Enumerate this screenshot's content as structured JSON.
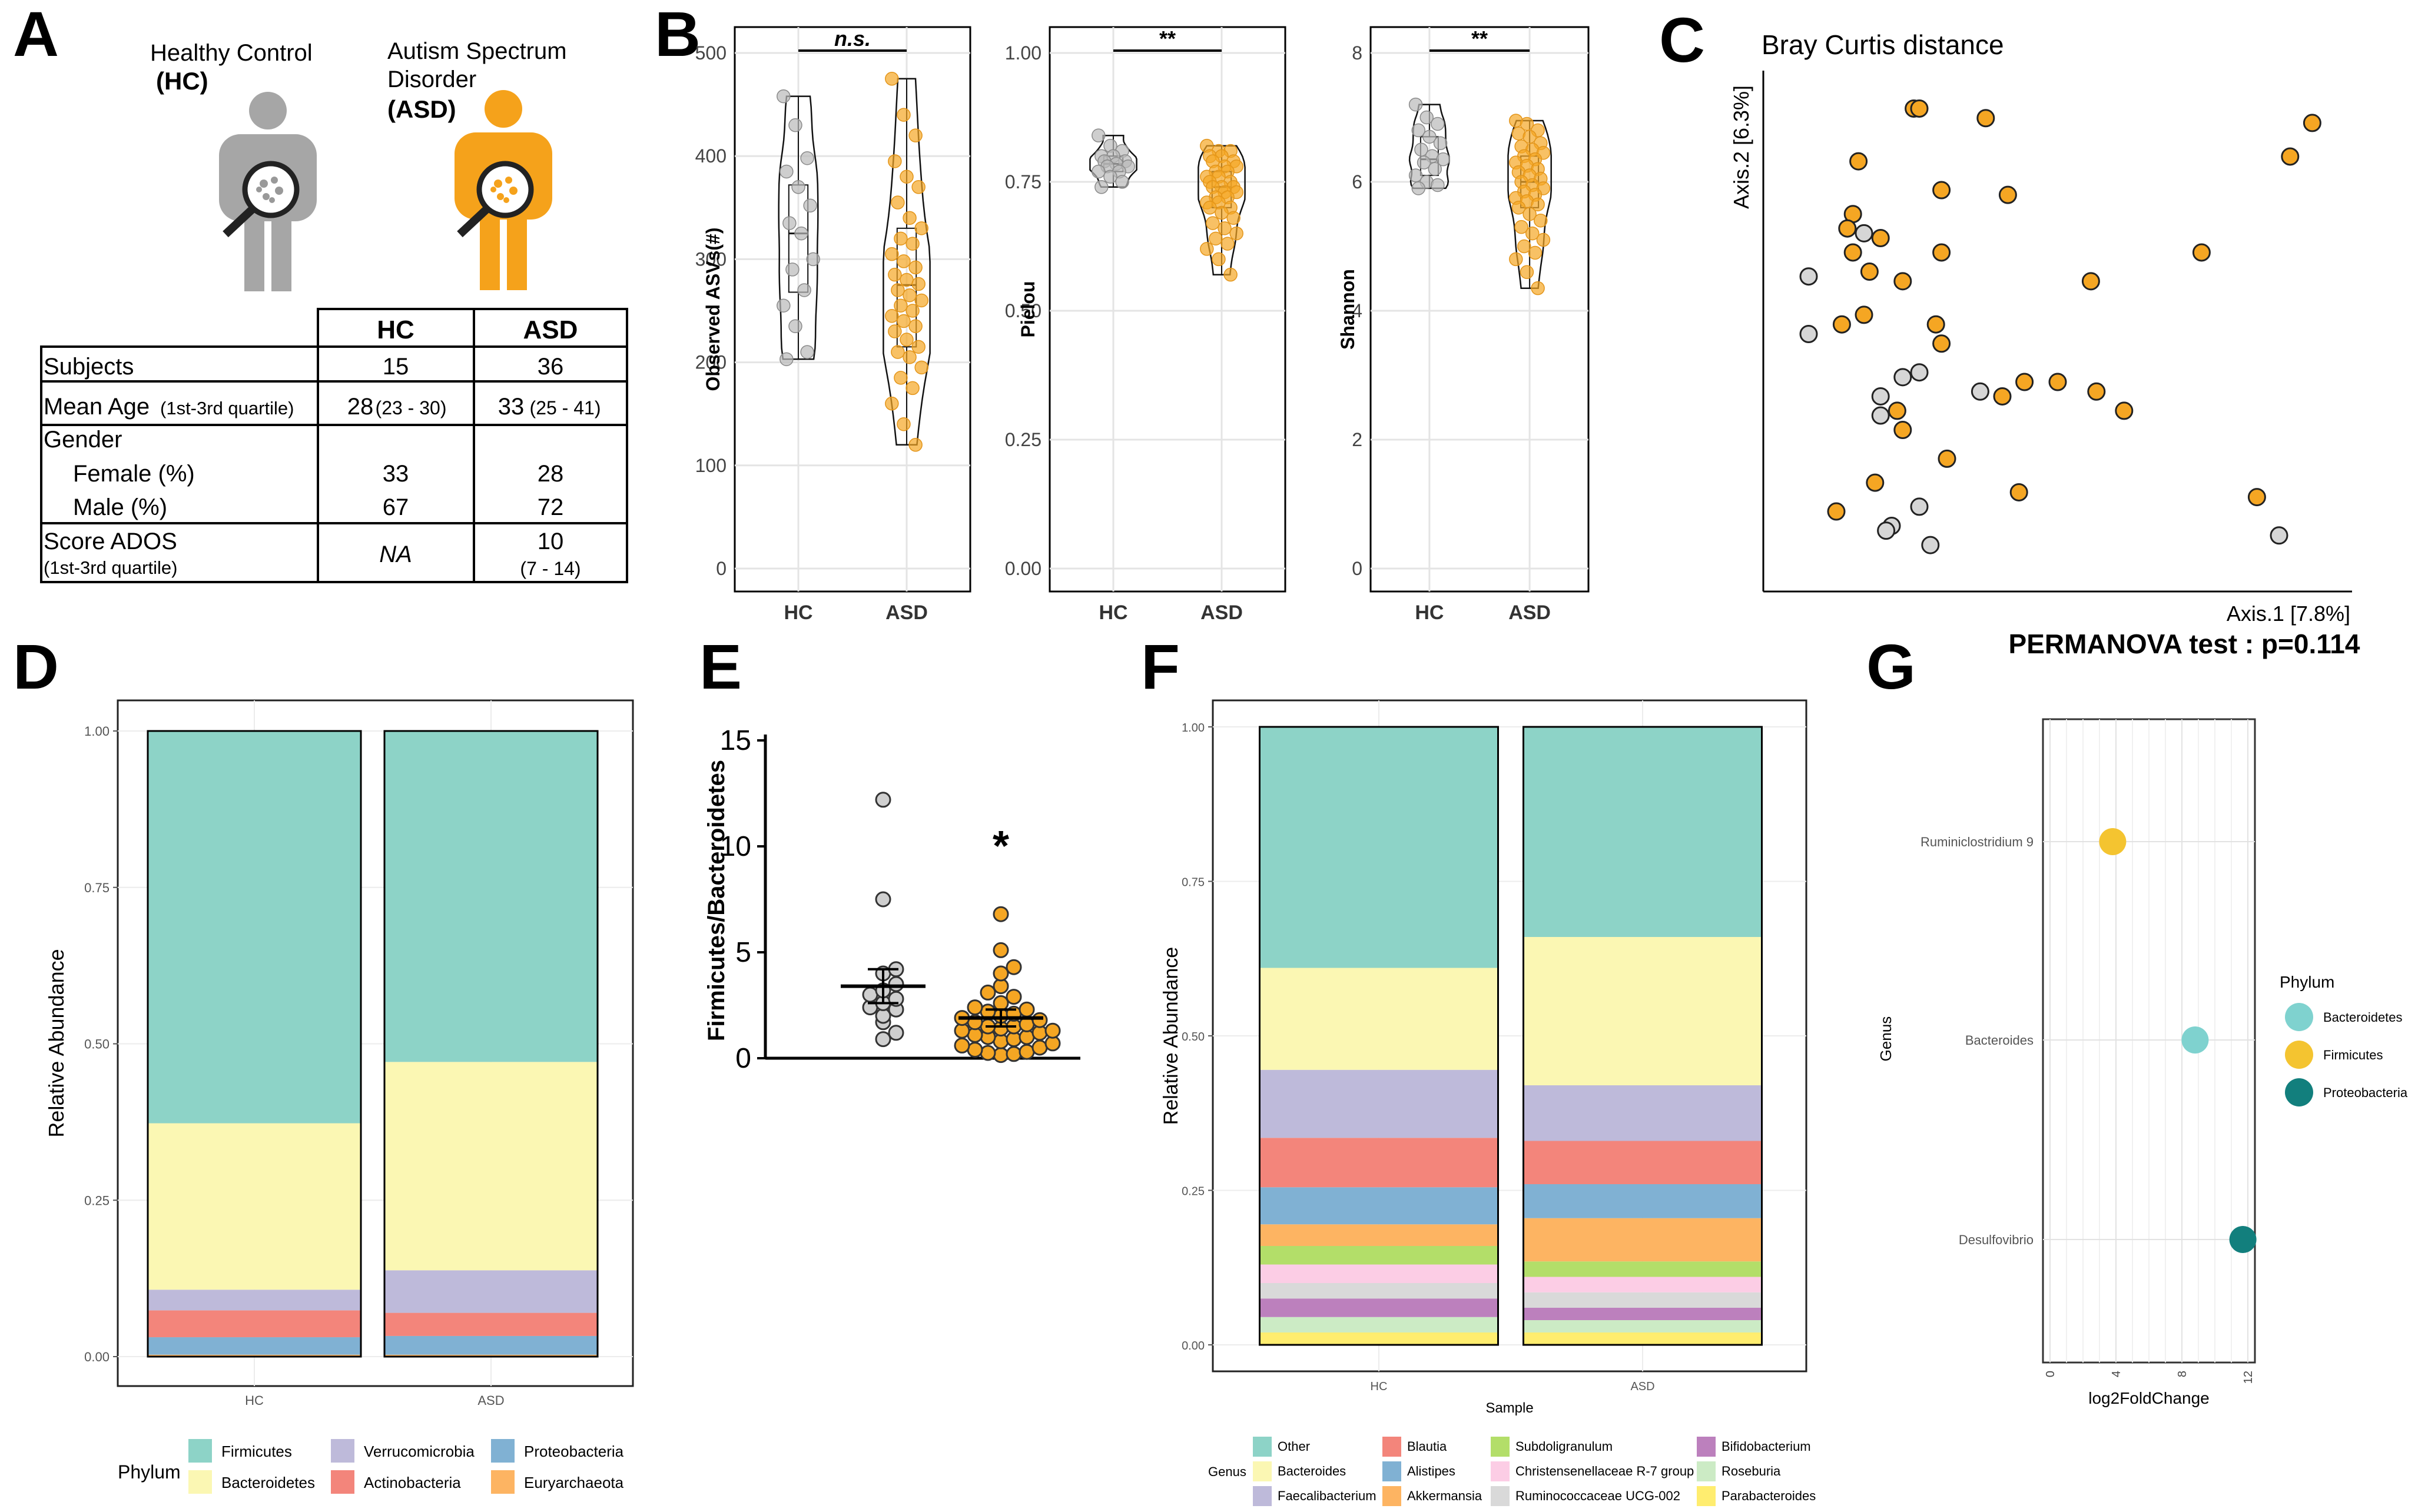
{
  "colors": {
    "hc": "#b9b9b9",
    "asd": "#f5a623",
    "grid": "#e4e4e4",
    "firmicutes": "#8dd3c7",
    "bacteroidetes": "#fbf7b3",
    "verrucomicrobia": "#bebada",
    "actinobacteria": "#f3857b",
    "proteobacteria": "#80b1d3",
    "euryarchaeota": "#fdb462",
    "g_bacteroidetes": "#7fd2cf",
    "g_firmicutes": "#f4c430",
    "g_proteobacteria": "#127f7d"
  },
  "panels": {
    "A": "A",
    "B": "B",
    "C": "C",
    "D": "D",
    "E": "E",
    "F": "F",
    "G": "G"
  },
  "panel_a": {
    "hc_line1": "Healthy Control",
    "hc_line2": "(HC)",
    "asd_line1": "Autism Spectrum",
    "asd_line2": "Disorder",
    "asd_line3": "(ASD)",
    "table": {
      "col_hc": "HC",
      "col_asd": "ASD",
      "subjects_label": "Subjects",
      "subjects_hc": "15",
      "subjects_asd": "36",
      "age_label": "Mean Age",
      "age_sub": "(1st-3rd quartile)",
      "age_hc": "28",
      "age_hc_range": "(23 - 30)",
      "age_asd": "33",
      "age_asd_range": "(25 - 41)",
      "gender_label": "Gender",
      "female_label": "Female (%)",
      "female_hc": "33",
      "female_asd": "28",
      "male_label": "Male (%)",
      "male_hc": "67",
      "male_asd": "72",
      "ados_label": "Score ADOS",
      "ados_sub": "(1st-3rd quartile)",
      "ados_hc": "NA",
      "ados_asd": "10",
      "ados_asd_range": "(7 - 14)"
    }
  },
  "chart_data": [
    {
      "id": "B1",
      "type": "violin",
      "title": "",
      "ylabel": "Observed ASVs(#)",
      "xlabel": "",
      "categories": [
        "HC",
        "ASD"
      ],
      "ylim": [
        0,
        500
      ],
      "yticks": [
        "0",
        "100",
        "200",
        "300",
        "400",
        "500"
      ],
      "significance": "n.s.",
      "box": {
        "HC": [
          268,
          325,
          372
        ],
        "ASD": [
          215,
          275,
          330
        ]
      },
      "points": {
        "HC": [
          458,
          430,
          398,
          385,
          370,
          352,
          335,
          325,
          300,
          290,
          270,
          255,
          235,
          210,
          203
        ],
        "ASD": [
          475,
          440,
          420,
          395,
          380,
          370,
          355,
          340,
          330,
          320,
          315,
          305,
          298,
          292,
          285,
          280,
          276,
          270,
          265,
          260,
          255,
          250,
          245,
          240,
          235,
          230,
          222,
          215,
          210,
          205,
          195,
          185,
          175,
          160,
          140,
          120
        ]
      }
    },
    {
      "id": "B2",
      "type": "violin",
      "title": "",
      "ylabel": "Pielou",
      "xlabel": "",
      "categories": [
        "HC",
        "ASD"
      ],
      "ylim": [
        0,
        1
      ],
      "yticks": [
        "0.00",
        "0.25",
        "0.50",
        "0.75",
        "1.00"
      ],
      "significance": "**",
      "box": {
        "HC": [
          0.77,
          0.785,
          0.8
        ],
        "ASD": [
          0.7,
          0.74,
          0.77
        ]
      },
      "points": {
        "HC": [
          0.84,
          0.82,
          0.81,
          0.8,
          0.8,
          0.79,
          0.79,
          0.785,
          0.78,
          0.78,
          0.77,
          0.77,
          0.76,
          0.75,
          0.74
        ],
        "ASD": [
          0.82,
          0.81,
          0.81,
          0.8,
          0.8,
          0.79,
          0.79,
          0.78,
          0.78,
          0.77,
          0.77,
          0.76,
          0.76,
          0.75,
          0.75,
          0.74,
          0.74,
          0.74,
          0.73,
          0.73,
          0.72,
          0.72,
          0.71,
          0.71,
          0.7,
          0.7,
          0.69,
          0.68,
          0.67,
          0.66,
          0.65,
          0.64,
          0.63,
          0.62,
          0.6,
          0.57
        ]
      }
    },
    {
      "id": "B3",
      "type": "violin",
      "title": "",
      "ylabel": "Shannon",
      "xlabel": "",
      "categories": [
        "HC",
        "ASD"
      ],
      "ylim": [
        0,
        8
      ],
      "yticks": [
        "0",
        "2",
        "4",
        "6",
        "8"
      ],
      "significance": "**",
      "box": {
        "HC": [
          6.1,
          6.35,
          6.7
        ],
        "ASD": [
          5.6,
          6.0,
          6.4
        ]
      },
      "points": {
        "HC": [
          7.2,
          7.0,
          6.9,
          6.8,
          6.7,
          6.6,
          6.5,
          6.4,
          6.35,
          6.3,
          6.2,
          6.1,
          6.0,
          5.95,
          5.9
        ],
        "ASD": [
          6.95,
          6.9,
          6.8,
          6.75,
          6.7,
          6.6,
          6.55,
          6.5,
          6.45,
          6.4,
          6.35,
          6.3,
          6.25,
          6.2,
          6.15,
          6.1,
          6.05,
          6.0,
          5.95,
          5.9,
          5.85,
          5.8,
          5.75,
          5.7,
          5.65,
          5.6,
          5.5,
          5.4,
          5.3,
          5.2,
          5.1,
          5.0,
          4.9,
          4.8,
          4.6,
          4.35
        ]
      }
    },
    {
      "id": "C",
      "type": "scatter",
      "title": "Bray Curtis distance",
      "xlabel": "Axis.1   [7.8%]",
      "ylabel": "Axis.2   [6.3%]",
      "note": "PERMANOVA test : p=0.114",
      "xlim": [
        0,
        100
      ],
      "ylim": [
        0,
        100
      ],
      "series": [
        {
          "name": "HC",
          "points": [
            [
              5,
              62
            ],
            [
              5,
              50
            ],
            [
              15,
              71
            ],
            [
              25,
              42
            ],
            [
              18,
              37
            ],
            [
              22,
              41
            ],
            [
              36,
              38
            ],
            [
              18,
              33
            ],
            [
              20,
              10
            ],
            [
              19,
              9
            ],
            [
              25,
              14
            ],
            [
              27,
              6
            ],
            [
              90,
              8
            ]
          ]
        },
        {
          "name": "ASD",
          "points": [
            [
              24,
              97
            ],
            [
              25,
              97
            ],
            [
              37,
              95
            ],
            [
              96,
              94
            ],
            [
              92,
              87
            ],
            [
              14,
              86
            ],
            [
              29,
              80
            ],
            [
              41,
              79
            ],
            [
              13,
              75
            ],
            [
              12,
              72
            ],
            [
              18,
              70
            ],
            [
              13,
              67
            ],
            [
              29,
              67
            ],
            [
              76,
              67
            ],
            [
              16,
              63
            ],
            [
              22,
              61
            ],
            [
              56,
              61
            ],
            [
              15,
              54
            ],
            [
              11,
              52
            ],
            [
              28,
              52
            ],
            [
              29,
              48
            ],
            [
              44,
              40
            ],
            [
              50,
              40
            ],
            [
              57,
              38
            ],
            [
              40,
              37
            ],
            [
              62,
              34
            ],
            [
              21,
              34
            ],
            [
              22,
              30
            ],
            [
              30,
              24
            ],
            [
              17,
              19
            ],
            [
              43,
              17
            ],
            [
              86,
              16
            ],
            [
              10,
              13
            ]
          ]
        }
      ]
    },
    {
      "id": "D",
      "type": "bar",
      "stacked": true,
      "xlabel": "",
      "ylabel": "Relative Abundance",
      "categories": [
        "HC",
        "ASD"
      ],
      "ylim": [
        0,
        1
      ],
      "yticks": [
        "0.00",
        "0.25",
        "0.50",
        "0.75",
        "1.00"
      ],
      "legend_title": "Phylum",
      "series": [
        {
          "name": "Euryarchaeota",
          "values": [
            0.003,
            0.003
          ]
        },
        {
          "name": "Proteobacteria",
          "values": [
            0.028,
            0.03
          ]
        },
        {
          "name": "Actinobacteria",
          "values": [
            0.043,
            0.037
          ]
        },
        {
          "name": "Verrucomicrobia",
          "values": [
            0.033,
            0.068
          ]
        },
        {
          "name": "Bacteroidetes",
          "values": [
            0.266,
            0.333
          ]
        },
        {
          "name": "Firmicutes",
          "values": [
            0.627,
            0.529
          ]
        }
      ],
      "legend": [
        "Firmicutes",
        "Bacteroidetes",
        "Verrucomicrobia",
        "Actinobacteria",
        "Proteobacteria",
        "Euryarchaeota"
      ]
    },
    {
      "id": "E",
      "type": "scatter",
      "xlabel": "",
      "ylabel": "Firmicutes/Bacteroidetes",
      "ylim": [
        0,
        15
      ],
      "yticks": [
        "0",
        "5",
        "10",
        "15"
      ],
      "significance": "*",
      "means": {
        "HC": 3.4,
        "ASD": 1.9
      },
      "sem": {
        "HC": [
          2.6,
          4.2
        ],
        "ASD": [
          1.5,
          2.3
        ]
      },
      "points": {
        "HC": [
          12.2,
          7.5,
          4.2,
          4.0,
          3.5,
          3.2,
          3.0,
          2.8,
          2.6,
          2.4,
          2.3,
          2.0,
          1.7,
          1.2,
          0.9
        ],
        "ASD": [
          6.8,
          5.1,
          4.3,
          4.0,
          3.4,
          3.1,
          2.9,
          2.6,
          2.4,
          2.3,
          2.2,
          2.1,
          2.0,
          1.9,
          1.8,
          1.7,
          1.6,
          1.5,
          1.5,
          1.4,
          1.3,
          1.3,
          1.2,
          1.1,
          1.0,
          1.0,
          0.9,
          0.8,
          0.7,
          0.6,
          0.5,
          0.4,
          0.3,
          0.25,
          0.2,
          0.15
        ]
      }
    },
    {
      "id": "F",
      "type": "bar",
      "stacked": true,
      "xlabel": "Sample",
      "ylabel": "Relative Abundance",
      "categories": [
        "HC",
        "ASD"
      ],
      "ylim": [
        0,
        1
      ],
      "yticks": [
        "0.00",
        "0.25",
        "0.50",
        "0.75",
        "1.00"
      ],
      "legend_title": "Genus",
      "series": [
        {
          "name": "Parabacteroides",
          "values": [
            0.02,
            0.02
          ]
        },
        {
          "name": "Roseburia",
          "values": [
            0.025,
            0.02
          ]
        },
        {
          "name": "Bifidobacterium",
          "values": [
            0.03,
            0.02
          ]
        },
        {
          "name": "Ruminococcaceae UCG-002",
          "values": [
            0.025,
            0.025
          ]
        },
        {
          "name": "Christensenellaceae R-7 group",
          "values": [
            0.03,
            0.025
          ]
        },
        {
          "name": "Subdoligranulum",
          "values": [
            0.03,
            0.025
          ]
        },
        {
          "name": "Akkermansia",
          "values": [
            0.035,
            0.07
          ]
        },
        {
          "name": "Alistipes",
          "values": [
            0.06,
            0.055
          ]
        },
        {
          "name": "Blautia",
          "values": [
            0.08,
            0.07
          ]
        },
        {
          "name": "Faecalibacterium",
          "values": [
            0.11,
            0.09
          ]
        },
        {
          "name": "Bacteroides",
          "values": [
            0.165,
            0.24
          ]
        },
        {
          "name": "Other",
          "values": [
            0.39,
            0.34
          ]
        }
      ],
      "legend": [
        "Other",
        "Bacteroides",
        "Faecalibacterium",
        "Blautia",
        "Alistipes",
        "Akkermansia",
        "Subdoligranulum",
        "Christensenellaceae R-7 group",
        "Ruminococcaceae UCG-002",
        "Bifidobacterium",
        "Roseburia",
        "Parabacteroides"
      ],
      "legend_colors": [
        "#8dd3c7",
        "#fbf7b3",
        "#bebada",
        "#f3857b",
        "#80b1d3",
        "#fdb462",
        "#b3de69",
        "#fccde5",
        "#d9d9d9",
        "#bc80bd",
        "#ccebc5",
        "#ffed6f"
      ]
    },
    {
      "id": "G",
      "type": "dot",
      "xlabel": "log2FoldChange",
      "ylabel": "Genus",
      "xlim": [
        0,
        12
      ],
      "xticks": [
        "0",
        "4",
        "8",
        "12"
      ],
      "categories": [
        "Ruminiclostridium 9",
        "Bacteroides",
        "Desulfovibrio"
      ],
      "values": [
        3.8,
        8.8,
        11.7
      ],
      "phylum": [
        "Firmicutes",
        "Bacteroidetes",
        "Proteobacteria"
      ],
      "legend_title": "Phylum",
      "legend": [
        "Bacteroidetes",
        "Firmicutes",
        "Proteobacteria"
      ]
    }
  ]
}
